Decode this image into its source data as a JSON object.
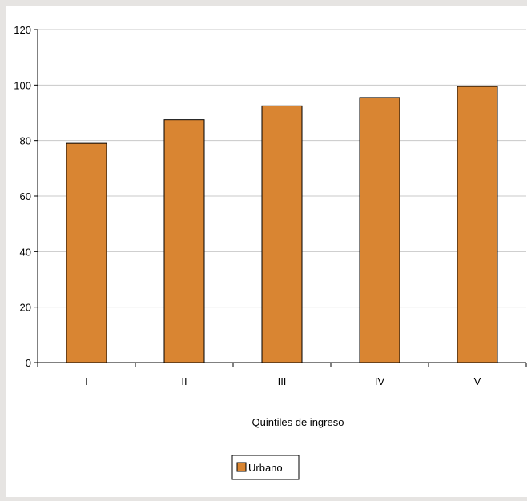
{
  "chart_data": {
    "type": "bar",
    "categories": [
      "I",
      "II",
      "III",
      "IV",
      "V"
    ],
    "series": [
      {
        "name": "Urbano",
        "values": [
          79,
          87.5,
          92.5,
          95.5,
          99.5
        ]
      }
    ],
    "xlabel": "Quintiles de ingreso",
    "ylabel": "",
    "ylim": [
      0,
      120
    ],
    "yticks": [
      "0",
      "20",
      "40",
      "60",
      "80",
      "100",
      "120"
    ],
    "grid": true,
    "legend": "bottom-center",
    "colors": {
      "bar": "#d98532",
      "grid": "#c8c8c8",
      "axis": "#000000"
    }
  }
}
